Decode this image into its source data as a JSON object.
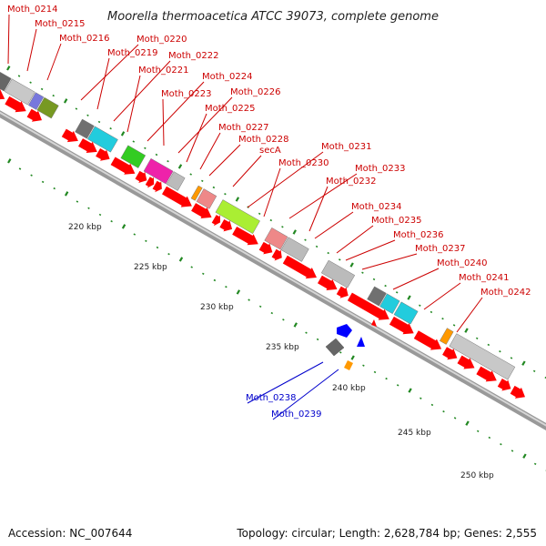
{
  "title": "Moorella thermoacetica ATCC 39073, complete genome",
  "footer": {
    "accession_label": "Accession: NC_007644",
    "summary_label": "Topology: circular; Length: 2,628,784 bp; Genes: 2,555"
  },
  "colors": {
    "forward_gene": "#ff0000",
    "reverse_gene": "#0000ff",
    "label_red": "#cc0000",
    "label_blue": "#0000cc",
    "backbone": "#999999",
    "tick": "#228822"
  },
  "scale_ticks": [
    "220 kbp",
    "225 kbp",
    "230 kbp",
    "235 kbp",
    "240 kbp",
    "245 kbp",
    "250 kbp"
  ],
  "gene_labels": [
    {
      "name": "Moth_0214",
      "strand": "+"
    },
    {
      "name": "Moth_0215",
      "strand": "+"
    },
    {
      "name": "Moth_0216",
      "strand": "+"
    },
    {
      "name": "Moth_0220",
      "strand": "+"
    },
    {
      "name": "Moth_0219",
      "strand": "+"
    },
    {
      "name": "Moth_0222",
      "strand": "+"
    },
    {
      "name": "Moth_0221",
      "strand": "+"
    },
    {
      "name": "Moth_0224",
      "strand": "+"
    },
    {
      "name": "Moth_0223",
      "strand": "+"
    },
    {
      "name": "Moth_0226",
      "strand": "+"
    },
    {
      "name": "Moth_0225",
      "strand": "+"
    },
    {
      "name": "Moth_0227",
      "strand": "+"
    },
    {
      "name": "Moth_0228",
      "strand": "+"
    },
    {
      "name": "secA",
      "strand": "+"
    },
    {
      "name": "Moth_0231",
      "strand": "+"
    },
    {
      "name": "Moth_0230",
      "strand": "+"
    },
    {
      "name": "Moth_0233",
      "strand": "+"
    },
    {
      "name": "Moth_0232",
      "strand": "+"
    },
    {
      "name": "Moth_0234",
      "strand": "+"
    },
    {
      "name": "Moth_0235",
      "strand": "+"
    },
    {
      "name": "Moth_0236",
      "strand": "+"
    },
    {
      "name": "Moth_0237",
      "strand": "+"
    },
    {
      "name": "Moth_0240",
      "strand": "+"
    },
    {
      "name": "Moth_0241",
      "strand": "+"
    },
    {
      "name": "Moth_0242",
      "strand": "+"
    },
    {
      "name": "Moth_0238",
      "strand": "-"
    },
    {
      "name": "Moth_0239",
      "strand": "-"
    }
  ]
}
